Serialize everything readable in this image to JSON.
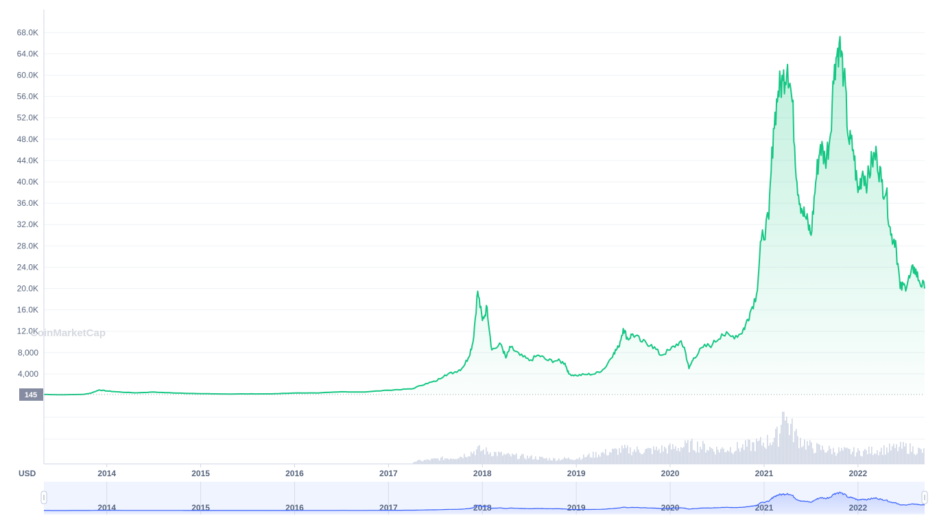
{
  "watermark": "CoinMarketCap",
  "unit_label": "USD",
  "current_price_label": "145",
  "colors": {
    "line": "#16c784",
    "area_top": "#16c784",
    "volume": "#cfd6e4",
    "navigator_fill": "#e4ebff",
    "navigator_line": "#3861fb",
    "grid": "#eff2f5",
    "text": "#58667e",
    "price_tag": "#858ca2"
  },
  "chart_data": [
    {
      "type": "area",
      "title": "",
      "ylabel": "",
      "xlabel": "",
      "ylim": [
        0,
        70000
      ],
      "y_ticks": [
        "4,000",
        "8,000",
        "12.0K",
        "16.0K",
        "20.0K",
        "24.0K",
        "28.0K",
        "32.0K",
        "36.0K",
        "40.0K",
        "44.0K",
        "48.0K",
        "52.0K",
        "56.0K",
        "60.0K",
        "64.0K",
        "68.0K"
      ],
      "y_tick_values": [
        4000,
        8000,
        12000,
        16000,
        20000,
        24000,
        28000,
        32000,
        36000,
        40000,
        44000,
        48000,
        52000,
        56000,
        60000,
        64000,
        68000
      ],
      "x_ticks": [
        "2014",
        "2015",
        "2016",
        "2017",
        "2018",
        "2019",
        "2020",
        "2021",
        "2022"
      ],
      "x_tick_values": [
        2014.0,
        2015.0,
        2016.0,
        2017.0,
        2018.0,
        2019.0,
        2020.0,
        2021.0,
        2022.0
      ],
      "xlim": [
        2013.33,
        2022.71
      ],
      "grid": true,
      "series": [
        {
          "points": [
            [
              2013.33,
              145
            ],
            [
              2013.5,
              100
            ],
            [
              2013.75,
              150
            ],
            [
              2013.83,
              400
            ],
            [
              2013.92,
              1000
            ],
            [
              2014.0,
              800
            ],
            [
              2014.1,
              650
            ],
            [
              2014.3,
              450
            ],
            [
              2014.5,
              600
            ],
            [
              2014.75,
              400
            ],
            [
              2015.0,
              300
            ],
            [
              2015.25,
              240
            ],
            [
              2015.5,
              250
            ],
            [
              2015.75,
              260
            ],
            [
              2016.0,
              430
            ],
            [
              2016.25,
              420
            ],
            [
              2016.5,
              650
            ],
            [
              2016.75,
              620
            ],
            [
              2017.0,
              950
            ],
            [
              2017.15,
              1100
            ],
            [
              2017.25,
              1200
            ],
            [
              2017.4,
              2200
            ],
            [
              2017.5,
              2600
            ],
            [
              2017.6,
              3800
            ],
            [
              2017.7,
              4300
            ],
            [
              2017.78,
              5000
            ],
            [
              2017.85,
              7000
            ],
            [
              2017.9,
              10000
            ],
            [
              2017.95,
              19500
            ],
            [
              2018.0,
              14000
            ],
            [
              2018.05,
              16500
            ],
            [
              2018.1,
              8500
            ],
            [
              2018.2,
              9500
            ],
            [
              2018.25,
              7000
            ],
            [
              2018.3,
              9000
            ],
            [
              2018.4,
              7500
            ],
            [
              2018.5,
              6500
            ],
            [
              2018.6,
              7500
            ],
            [
              2018.7,
              6500
            ],
            [
              2018.8,
              6500
            ],
            [
              2018.88,
              6000
            ],
            [
              2018.92,
              4000
            ],
            [
              2019.0,
              3700
            ],
            [
              2019.1,
              3900
            ],
            [
              2019.2,
              4000
            ],
            [
              2019.3,
              5000
            ],
            [
              2019.4,
              8000
            ],
            [
              2019.45,
              9000
            ],
            [
              2019.5,
              12500
            ],
            [
              2019.55,
              10500
            ],
            [
              2019.6,
              11500
            ],
            [
              2019.7,
              10000
            ],
            [
              2019.8,
              9500
            ],
            [
              2019.9,
              7500
            ],
            [
              2020.0,
              8500
            ],
            [
              2020.1,
              10000
            ],
            [
              2020.15,
              9000
            ],
            [
              2020.2,
              5000
            ],
            [
              2020.25,
              7000
            ],
            [
              2020.35,
              9000
            ],
            [
              2020.45,
              9500
            ],
            [
              2020.55,
              11500
            ],
            [
              2020.65,
              11000
            ],
            [
              2020.75,
              11500
            ],
            [
              2020.8,
              13000
            ],
            [
              2020.85,
              15500
            ],
            [
              2020.92,
              19000
            ],
            [
              2020.97,
              29000
            ],
            [
              2021.05,
              33000
            ],
            [
              2021.1,
              50000
            ],
            [
              2021.15,
              57000
            ],
            [
              2021.2,
              59000
            ],
            [
              2021.25,
              62000
            ],
            [
              2021.3,
              55000
            ],
            [
              2021.35,
              40000
            ],
            [
              2021.4,
              35000
            ],
            [
              2021.45,
              33000
            ],
            [
              2021.5,
              30000
            ],
            [
              2021.55,
              40000
            ],
            [
              2021.6,
              47000
            ],
            [
              2021.65,
              44000
            ],
            [
              2021.7,
              48000
            ],
            [
              2021.75,
              62000
            ],
            [
              2021.8,
              66000
            ],
            [
              2021.85,
              60000
            ],
            [
              2021.9,
              48000
            ],
            [
              2021.95,
              46000
            ],
            [
              2022.0,
              38000
            ],
            [
              2022.05,
              42000
            ],
            [
              2022.1,
              40000
            ],
            [
              2022.15,
              44000
            ],
            [
              2022.2,
              45000
            ],
            [
              2022.25,
              40000
            ],
            [
              2022.3,
              38000
            ],
            [
              2022.35,
              30000
            ],
            [
              2022.4,
              29000
            ],
            [
              2022.45,
              20000
            ],
            [
              2022.5,
              20500
            ],
            [
              2022.55,
              22000
            ],
            [
              2022.6,
              24000
            ],
            [
              2022.65,
              21500
            ],
            [
              2022.71,
              20000
            ]
          ]
        }
      ]
    },
    {
      "type": "bar",
      "title": "",
      "ylabel": "",
      "xlim": [
        2013.33,
        2022.71
      ],
      "series": [
        {
          "points": [
            [
              2017.25,
              0.05
            ],
            [
              2017.5,
              0.1
            ],
            [
              2017.75,
              0.15
            ],
            [
              2017.95,
              0.3
            ],
            [
              2018.25,
              0.18
            ],
            [
              2018.5,
              0.14
            ],
            [
              2018.75,
              0.1
            ],
            [
              2019.0,
              0.12
            ],
            [
              2019.25,
              0.22
            ],
            [
              2019.5,
              0.3
            ],
            [
              2019.75,
              0.28
            ],
            [
              2020.0,
              0.33
            ],
            [
              2020.25,
              0.4
            ],
            [
              2020.5,
              0.3
            ],
            [
              2020.75,
              0.35
            ],
            [
              2021.0,
              0.45
            ],
            [
              2021.15,
              0.6
            ],
            [
              2021.2,
              1.0
            ],
            [
              2021.35,
              0.55
            ],
            [
              2021.5,
              0.35
            ],
            [
              2021.75,
              0.28
            ],
            [
              2022.0,
              0.25
            ],
            [
              2022.25,
              0.3
            ],
            [
              2022.5,
              0.35
            ],
            [
              2022.71,
              0.25
            ]
          ]
        }
      ]
    }
  ]
}
